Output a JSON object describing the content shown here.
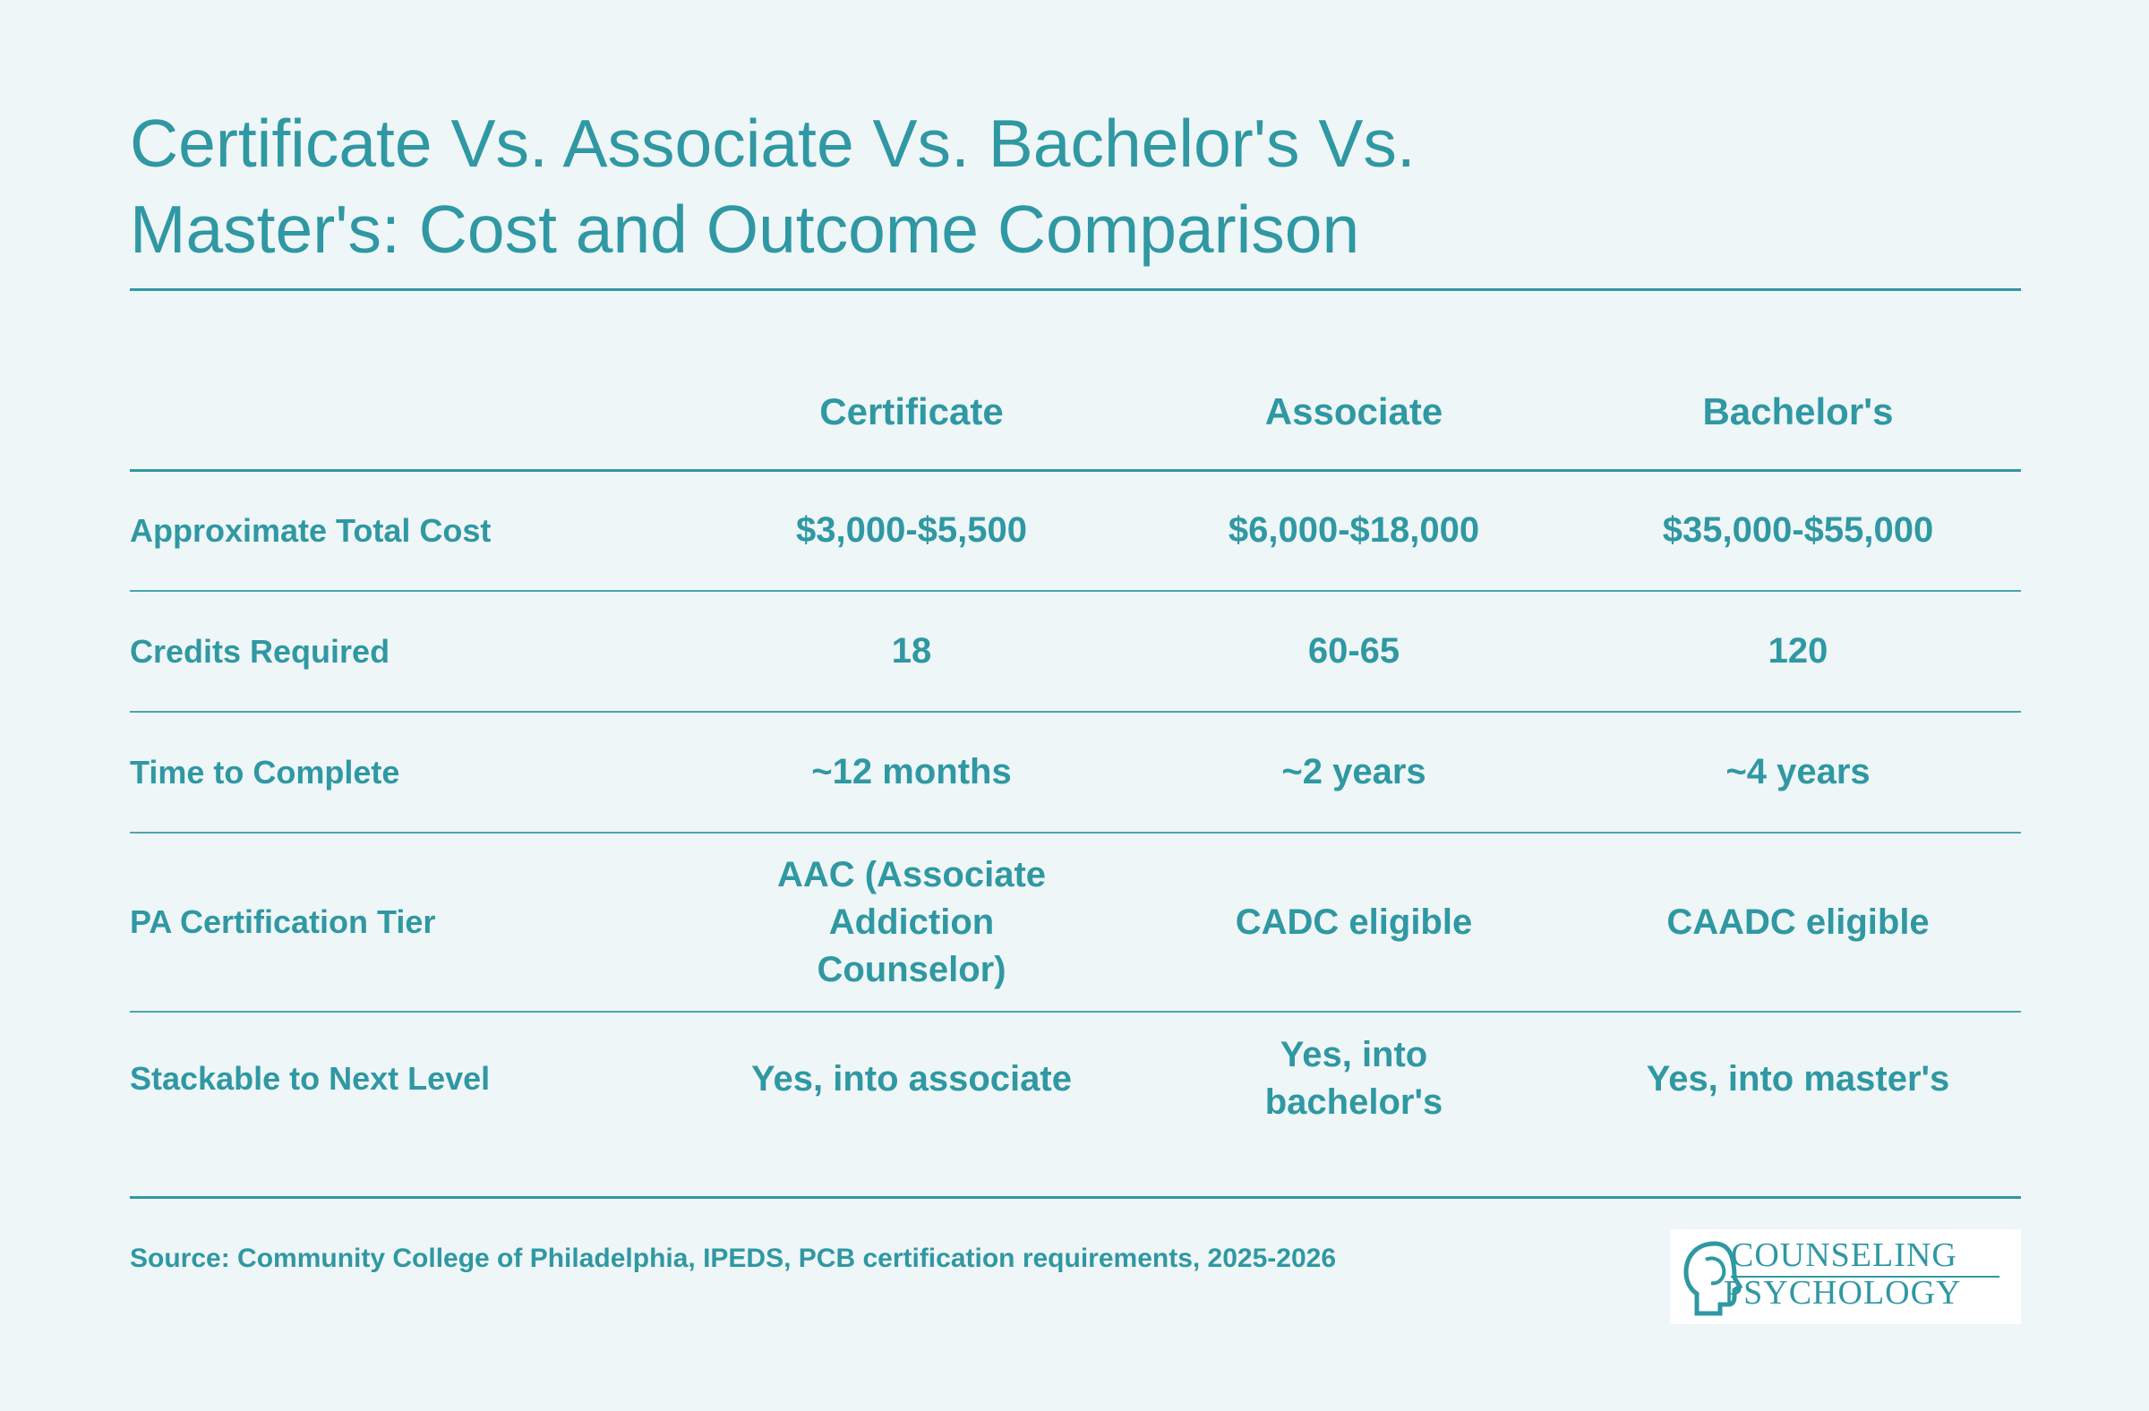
{
  "title_line1": "Certificate Vs. Associate Vs. Bachelor's Vs.",
  "title_line2": "Master's: Cost and Outcome Comparison",
  "table": {
    "columns": [
      "",
      "Certificate",
      "Associate",
      "Bachelor's"
    ],
    "rows": [
      {
        "label": "Approximate Total Cost",
        "values": [
          "$3,000-$5,500",
          "$6,000-$18,000",
          "$35,000-$55,000"
        ]
      },
      {
        "label": "Credits Required",
        "values": [
          "18",
          "60-65",
          "120"
        ]
      },
      {
        "label": "Time to Complete",
        "values": [
          "~12 months",
          "~2 years",
          "~4 years"
        ]
      },
      {
        "label": "PA Certification Tier",
        "values": [
          "AAC (Associate Addiction Counselor)",
          "CADC eligible",
          "CAADC eligible"
        ]
      },
      {
        "label": "Stackable to Next Level",
        "values": [
          "Yes, into associate",
          "Yes, into bachelor's",
          "Yes, into master's"
        ]
      }
    ]
  },
  "source": "Source: Community College of Philadelphia, IPEDS, PCB certification requirements, 2025-2026",
  "logo": {
    "line1": "COUNSELING",
    "line2": "PSYCHOLOGY",
    "icon": "head-profile-icon"
  },
  "colors": {
    "accent": "#2f98a3",
    "background": "#eff6f7"
  }
}
